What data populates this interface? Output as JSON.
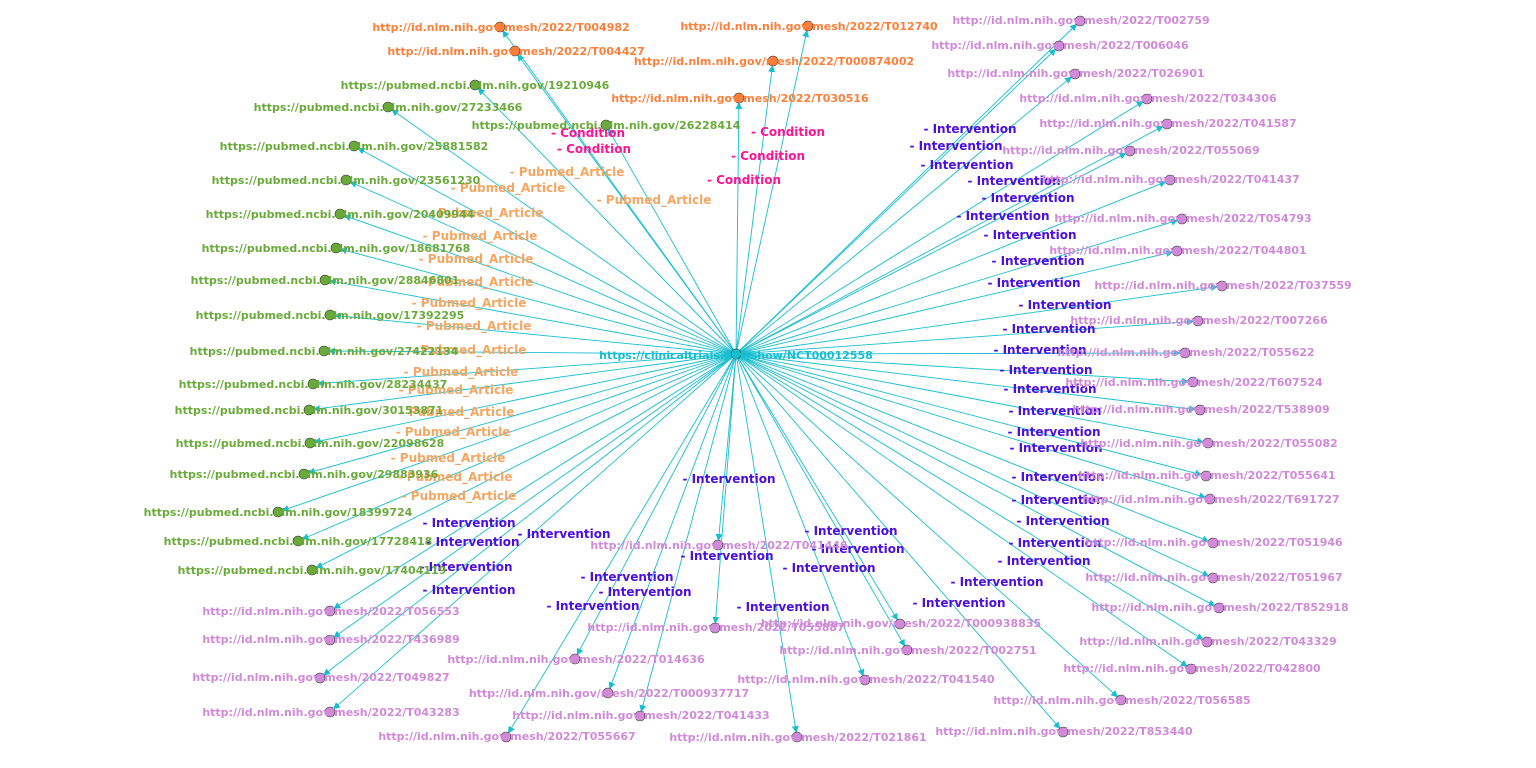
{
  "colors": {
    "edge": "#17becf",
    "center_node": "#17becf",
    "center_label": "#17becf",
    "condition_node": "#ff7f3a",
    "condition_node_label": "#ff7f3a",
    "condition_edge_label": "#ff1493",
    "article_node": "#6aaa3a",
    "article_node_label": "#6aaa3a",
    "article_edge_label": "#f5a662",
    "intervention_node": "#d08ad8",
    "intervention_node_label": "#d08ad8",
    "intervention_edge_label": "#4b0fe0"
  },
  "edge_labels": {
    "condition": "- Condition",
    "article": "- Pubmed_Article",
    "intervention": "- Intervention"
  },
  "center": {
    "label": "https://clinicaltrials.gov/show/NCT00012558"
  },
  "conditions": [
    "http://id.nlm.nih.gov/mesh/2022/T004982",
    "http://id.nlm.nih.gov/mesh/2022/T004427",
    "http://id.nlm.nih.gov/mesh/2022/T012740",
    "http://id.nlm.nih.gov/mesh/2022/T000874002",
    "http://id.nlm.nih.gov/mesh/2022/T030516"
  ],
  "articles": [
    "https://pubmed.ncbi.nlm.nih.gov/19210946",
    "https://pubmed.ncbi.nlm.nih.gov/27233466",
    "https://pubmed.ncbi.nlm.nih.gov/26228414",
    "https://pubmed.ncbi.nlm.nih.gov/25881582",
    "https://pubmed.ncbi.nlm.nih.gov/23561230",
    "https://pubmed.ncbi.nlm.nih.gov/20409944",
    "https://pubmed.ncbi.nlm.nih.gov/18681768",
    "https://pubmed.ncbi.nlm.nih.gov/28846801",
    "https://pubmed.ncbi.nlm.nih.gov/17392295",
    "https://pubmed.ncbi.nlm.nih.gov/27422134",
    "https://pubmed.ncbi.nlm.nih.gov/28234437",
    "https://pubmed.ncbi.nlm.nih.gov/30153871",
    "https://pubmed.ncbi.nlm.nih.gov/22098628",
    "https://pubmed.ncbi.nlm.nih.gov/29883936",
    "https://pubmed.ncbi.nlm.nih.gov/18399724",
    "https://pubmed.ncbi.nlm.nih.gov/17728418",
    "https://pubmed.ncbi.nlm.nih.gov/17404119"
  ],
  "interventions": [
    "http://id.nlm.nih.gov/mesh/2022/T002759",
    "http://id.nlm.nih.gov/mesh/2022/T006046",
    "http://id.nlm.nih.gov/mesh/2022/T026901",
    "http://id.nlm.nih.gov/mesh/2022/T034306",
    "http://id.nlm.nih.gov/mesh/2022/T041587",
    "http://id.nlm.nih.gov/mesh/2022/T055069",
    "http://id.nlm.nih.gov/mesh/2022/T041437",
    "http://id.nlm.nih.gov/mesh/2022/T054793",
    "http://id.nlm.nih.gov/mesh/2022/T044801",
    "http://id.nlm.nih.gov/mesh/2022/T037559",
    "http://id.nlm.nih.gov/mesh/2022/T007266",
    "http://id.nlm.nih.gov/mesh/2022/T055622",
    "http://id.nlm.nih.gov/mesh/2022/T607524",
    "http://id.nlm.nih.gov/mesh/2022/T538909",
    "http://id.nlm.nih.gov/mesh/2022/T055082",
    "http://id.nlm.nih.gov/mesh/2022/T055641",
    "http://id.nlm.nih.gov/mesh/2022/T691727",
    "http://id.nlm.nih.gov/mesh/2022/T051946",
    "http://id.nlm.nih.gov/mesh/2022/T051967",
    "http://id.nlm.nih.gov/mesh/2022/T852918",
    "http://id.nlm.nih.gov/mesh/2022/T043329",
    "http://id.nlm.nih.gov/mesh/2022/T042800",
    "http://id.nlm.nih.gov/mesh/2022/T056585",
    "http://id.nlm.nih.gov/mesh/2022/T853440",
    "http://id.nlm.nih.gov/mesh/2022/T021861",
    "http://id.nlm.nih.gov/mesh/2022/T041540",
    "http://id.nlm.nih.gov/mesh/2022/T002751",
    "http://id.nlm.nih.gov/mesh/2022/T000938835",
    "http://id.nlm.nih.gov/mesh/2022/T041446",
    "http://id.nlm.nih.gov/mesh/2022/T055887",
    "http://id.nlm.nih.gov/mesh/2022/T014636",
    "http://id.nlm.nih.gov/mesh/2022/T000937717",
    "http://id.nlm.nih.gov/mesh/2022/T041433",
    "http://id.nlm.nih.gov/mesh/2022/T055667",
    "http://id.nlm.nih.gov/mesh/2022/T056553",
    "http://id.nlm.nih.gov/mesh/2022/T436989",
    "http://id.nlm.nih.gov/mesh/2022/T049827",
    "http://id.nlm.nih.gov/mesh/2022/T043283"
  ]
}
